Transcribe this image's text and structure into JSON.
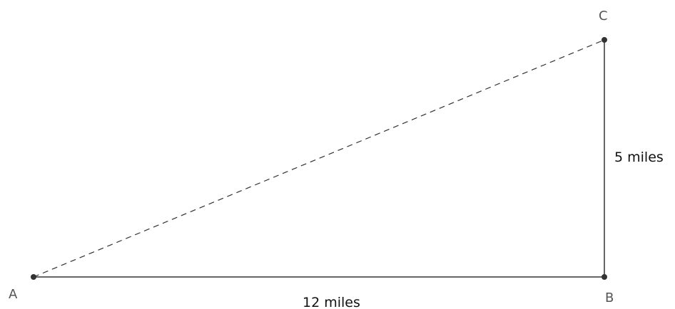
{
  "diagram": {
    "points": {
      "a": "A",
      "b": "B",
      "c": "C"
    },
    "measurements": {
      "ab": "12 miles",
      "bc": "5 miles"
    },
    "colors": {
      "line": "#333333",
      "point": "#333333",
      "point_label": "#555555",
      "measure_label": "#111111"
    },
    "styles": {
      "ac_segment": "dashed",
      "ab_segment": "solid",
      "bc_segment": "solid"
    }
  }
}
